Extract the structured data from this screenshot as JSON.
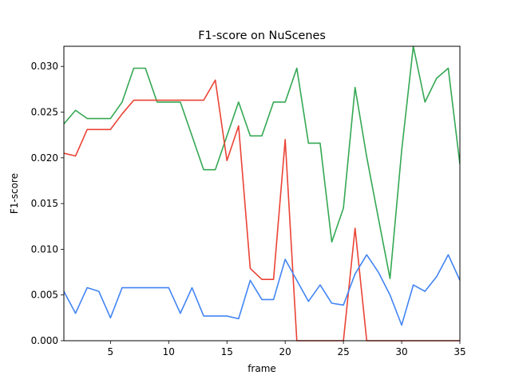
{
  "chart_data": {
    "type": "line",
    "title": "F1-score on NuScenes",
    "xlabel": "frame",
    "ylabel": "F1-score",
    "xlim": [
      1,
      35
    ],
    "ylim": [
      0,
      0.0322
    ],
    "x_ticks": [
      5,
      10,
      15,
      20,
      25,
      30,
      35
    ],
    "x_tick_labels": [
      "5",
      "10",
      "15",
      "20",
      "25",
      "30",
      "35"
    ],
    "y_ticks": [
      0,
      0.005,
      0.01,
      0.015,
      0.02,
      0.025,
      0.03
    ],
    "y_tick_labels": [
      "0.000",
      "0.005",
      "0.010",
      "0.015",
      "0.020",
      "0.025",
      "0.030"
    ],
    "grid": false,
    "legend": "none",
    "x": [
      1,
      2,
      3,
      4,
      5,
      6,
      7,
      8,
      9,
      10,
      11,
      12,
      13,
      14,
      15,
      16,
      17,
      18,
      19,
      20,
      21,
      22,
      23,
      24,
      25,
      26,
      27,
      28,
      29,
      30,
      31,
      32,
      33,
      34,
      35
    ],
    "series": [
      {
        "color": "#34a853",
        "values": [
          0.0237,
          0.0252,
          0.0243,
          0.0243,
          0.0243,
          0.0261,
          0.0298,
          0.0298,
          0.0261,
          0.0261,
          0.0261,
          0.0224,
          0.0187,
          0.0187,
          0.0224,
          0.0261,
          0.0224,
          0.0224,
          0.0261,
          0.0261,
          0.0298,
          0.0216,
          0.0216,
          0.0108,
          0.0145,
          0.0277,
          0.0201,
          0.0134,
          0.0068,
          0.0208,
          0.0322,
          0.0261,
          0.0287,
          0.0298,
          0.0193
        ]
      },
      {
        "color": "#ea4335",
        "values": [
          0.0205,
          0.0202,
          0.0231,
          0.0231,
          0.0231,
          0.0248,
          0.0263,
          0.0263,
          0.0263,
          0.0263,
          0.0263,
          0.0263,
          0.0263,
          0.0285,
          0.0197,
          0.0235,
          0.0079,
          0.0067,
          0.0067,
          0.022,
          0.0,
          0.0,
          0.0,
          0.0,
          0.0,
          0.0123,
          0.0,
          0.0,
          0.0,
          0.0,
          0.0,
          0.0,
          0.0,
          0.0,
          0.0
        ]
      },
      {
        "color": "#4285f4",
        "values": [
          0.0054,
          0.003,
          0.0058,
          0.0054,
          0.0025,
          0.0058,
          0.0058,
          0.0058,
          0.0058,
          0.0058,
          0.003,
          0.0058,
          0.0027,
          0.0027,
          0.0027,
          0.0024,
          0.0066,
          0.0045,
          0.0045,
          0.0089,
          0.0066,
          0.0043,
          0.0061,
          0.0041,
          0.0039,
          0.0073,
          0.0094,
          0.0075,
          0.005,
          0.0017,
          0.0061,
          0.0054,
          0.007,
          0.0094,
          0.0066
        ]
      }
    ]
  }
}
